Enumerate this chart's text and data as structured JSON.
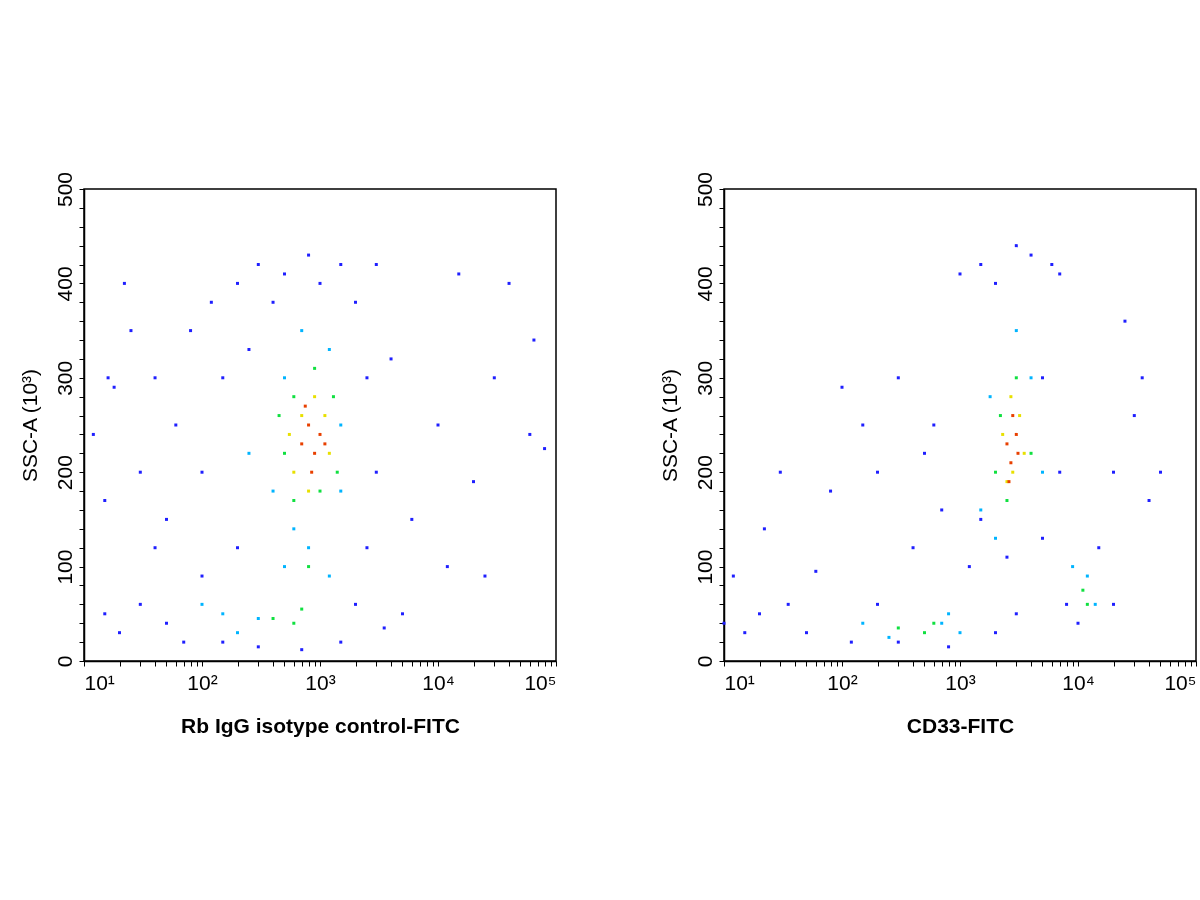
{
  "chart_data": [
    {
      "type": "scatter",
      "xlabel": "Rb IgG isotype control-FITC",
      "ylabel": "SSC-A  (10³)",
      "log": "x",
      "marker": "square",
      "grid": false,
      "xlim": [
        10,
        100000
      ],
      "ylim": [
        0,
        500
      ],
      "xticks": [
        {
          "value": 10,
          "label": "10¹"
        },
        {
          "value": 20,
          "label": null
        },
        {
          "value": 30,
          "label": null
        },
        {
          "value": 40,
          "label": null
        },
        {
          "value": 50,
          "label": null
        },
        {
          "value": 60,
          "label": null
        },
        {
          "value": 70,
          "label": null
        },
        {
          "value": 80,
          "label": null
        },
        {
          "value": 90,
          "label": null
        },
        {
          "value": 100,
          "label": "10²"
        },
        {
          "value": 200,
          "label": null
        },
        {
          "value": 300,
          "label": null
        },
        {
          "value": 400,
          "label": null
        },
        {
          "value": 500,
          "label": null
        },
        {
          "value": 600,
          "label": null
        },
        {
          "value": 700,
          "label": null
        },
        {
          "value": 800,
          "label": null
        },
        {
          "value": 900,
          "label": null
        },
        {
          "value": 1000,
          "label": "10³"
        },
        {
          "value": 2000,
          "label": null
        },
        {
          "value": 3000,
          "label": null
        },
        {
          "value": 4000,
          "label": null
        },
        {
          "value": 5000,
          "label": null
        },
        {
          "value": 6000,
          "label": null
        },
        {
          "value": 7000,
          "label": null
        },
        {
          "value": 8000,
          "label": null
        },
        {
          "value": 9000,
          "label": null
        },
        {
          "value": 10000,
          "label": "10⁴"
        },
        {
          "value": 20000,
          "label": null
        },
        {
          "value": 30000,
          "label": null
        },
        {
          "value": 40000,
          "label": null
        },
        {
          "value": 50000,
          "label": null
        },
        {
          "value": 60000,
          "label": null
        },
        {
          "value": 70000,
          "label": null
        },
        {
          "value": 80000,
          "label": null
        },
        {
          "value": 90000,
          "label": null
        },
        {
          "value": 100000,
          "label": "10⁵"
        }
      ],
      "yticks": [
        0,
        {
          "value": 20,
          "label": null
        },
        {
          "value": 40,
          "label": null
        },
        {
          "value": 60,
          "label": null
        },
        {
          "value": 80,
          "label": null
        },
        100,
        {
          "value": 120,
          "label": null
        },
        {
          "value": 140,
          "label": null
        },
        {
          "value": 160,
          "label": null
        },
        {
          "value": 180,
          "label": null
        },
        200,
        {
          "value": 220,
          "label": null
        },
        {
          "value": 240,
          "label": null
        },
        {
          "value": 260,
          "label": null
        },
        {
          "value": 280,
          "label": null
        },
        300,
        {
          "value": 320,
          "label": null
        },
        {
          "value": 340,
          "label": null
        },
        {
          "value": 360,
          "label": null
        },
        {
          "value": 380,
          "label": null
        },
        400,
        {
          "value": 420,
          "label": null
        },
        {
          "value": 440,
          "label": null
        },
        {
          "value": 460,
          "label": null
        },
        {
          "value": 480,
          "label": null
        },
        500
      ],
      "series": [
        {
          "color": "#1f1fff",
          "x": [
            12,
            15,
            18,
            22,
            25,
            30,
            40,
            50,
            60,
            80,
            100,
            120,
            150,
            200,
            250,
            300,
            400,
            500,
            800,
            1000,
            1500,
            2000,
            3000,
            2500,
            3000,
            4000,
            6000,
            10000,
            15000,
            20000,
            30000,
            40000,
            60000,
            65000,
            80000,
            12000,
            25000,
            5000,
            15,
            20,
            30,
            50,
            70,
            150,
            300,
            700,
            1500,
            2000,
            2500,
            200,
            100,
            40,
            3500,
            16
          ],
          "values": [
            240,
            170,
            290,
            400,
            350,
            200,
            300,
            150,
            250,
            350,
            200,
            380,
            300,
            400,
            330,
            420,
            380,
            410,
            430,
            400,
            420,
            380,
            420,
            300,
            200,
            320,
            150,
            250,
            410,
            190,
            300,
            400,
            240,
            340,
            225,
            100,
            90,
            50,
            50,
            30,
            60,
            40,
            20,
            20,
            15,
            12,
            20,
            60,
            120,
            120,
            90,
            120,
            35,
            300
          ]
        },
        {
          "color": "#00b4ff",
          "x": [
            150,
            200,
            300,
            500,
            600,
            800,
            1200,
            400,
            500,
            1200,
            1500,
            700,
            250,
            1500,
            100
          ],
          "values": [
            50,
            30,
            45,
            100,
            140,
            120,
            90,
            180,
            300,
            330,
            250,
            350,
            220,
            180,
            60
          ]
        },
        {
          "color": "#10e040",
          "x": [
            400,
            600,
            700,
            500,
            600,
            900,
            1300,
            1400,
            600,
            1000,
            450,
            800
          ],
          "values": [
            45,
            40,
            55,
            220,
            280,
            310,
            280,
            200,
            170,
            180,
            260,
            100
          ]
        },
        {
          "color": "#e8e000",
          "x": [
            600,
            700,
            900,
            1100,
            1200,
            800,
            550
          ],
          "values": [
            200,
            260,
            280,
            260,
            220,
            180,
            240
          ]
        },
        {
          "color": "#e84000",
          "x": [
            700,
            800,
            900,
            1000,
            850,
            750,
            1100
          ],
          "values": [
            230,
            250,
            220,
            240,
            200,
            270,
            230
          ]
        }
      ]
    },
    {
      "type": "scatter",
      "xlabel": "CD33-FITC",
      "ylabel": "SSC-A  (10³)",
      "log": "x",
      "marker": "square",
      "grid": false,
      "xlim": [
        10,
        100000
      ],
      "ylim": [
        0,
        500
      ],
      "xticks": [
        {
          "value": 10,
          "label": "10¹"
        },
        {
          "value": 20,
          "label": null
        },
        {
          "value": 30,
          "label": null
        },
        {
          "value": 40,
          "label": null
        },
        {
          "value": 50,
          "label": null
        },
        {
          "value": 60,
          "label": null
        },
        {
          "value": 70,
          "label": null
        },
        {
          "value": 80,
          "label": null
        },
        {
          "value": 90,
          "label": null
        },
        {
          "value": 100,
          "label": "10²"
        },
        {
          "value": 200,
          "label": null
        },
        {
          "value": 300,
          "label": null
        },
        {
          "value": 400,
          "label": null
        },
        {
          "value": 500,
          "label": null
        },
        {
          "value": 600,
          "label": null
        },
        {
          "value": 700,
          "label": null
        },
        {
          "value": 800,
          "label": null
        },
        {
          "value": 900,
          "label": null
        },
        {
          "value": 1000,
          "label": "10³"
        },
        {
          "value": 2000,
          "label": null
        },
        {
          "value": 3000,
          "label": null
        },
        {
          "value": 4000,
          "label": null
        },
        {
          "value": 5000,
          "label": null
        },
        {
          "value": 6000,
          "label": null
        },
        {
          "value": 7000,
          "label": null
        },
        {
          "value": 8000,
          "label": null
        },
        {
          "value": 9000,
          "label": null
        },
        {
          "value": 10000,
          "label": "10⁴"
        },
        {
          "value": 20000,
          "label": null
        },
        {
          "value": 30000,
          "label": null
        },
        {
          "value": 40000,
          "label": null
        },
        {
          "value": 50000,
          "label": null
        },
        {
          "value": 60000,
          "label": null
        },
        {
          "value": 70000,
          "label": null
        },
        {
          "value": 80000,
          "label": null
        },
        {
          "value": 90000,
          "label": null
        },
        {
          "value": 100000,
          "label": "10⁵"
        }
      ],
      "yticks": [
        0,
        {
          "value": 20,
          "label": null
        },
        {
          "value": 40,
          "label": null
        },
        {
          "value": 60,
          "label": null
        },
        {
          "value": 80,
          "label": null
        },
        100,
        {
          "value": 120,
          "label": null
        },
        {
          "value": 140,
          "label": null
        },
        {
          "value": 160,
          "label": null
        },
        {
          "value": 180,
          "label": null
        },
        200,
        {
          "value": 220,
          "label": null
        },
        {
          "value": 240,
          "label": null
        },
        {
          "value": 260,
          "label": null
        },
        {
          "value": 280,
          "label": null
        },
        300,
        {
          "value": 320,
          "label": null
        },
        {
          "value": 340,
          "label": null
        },
        {
          "value": 360,
          "label": null
        },
        {
          "value": 380,
          "label": null
        },
        400,
        {
          "value": 420,
          "label": null
        },
        {
          "value": 440,
          "label": null
        },
        {
          "value": 460,
          "label": null
        },
        {
          "value": 480,
          "label": null
        },
        500
      ],
      "series": [
        {
          "color": "#1f1fff",
          "x": [
            10,
            12,
            15,
            20,
            22,
            30,
            35,
            50,
            60,
            80,
            100,
            120,
            150,
            200,
            200,
            300,
            300,
            400,
            500,
            600,
            800,
            1000,
            700,
            1200,
            1500,
            1500,
            2000,
            3000,
            4000,
            6000,
            7000,
            5000,
            5000,
            2500,
            8000,
            10000,
            15000,
            20000,
            25000,
            30000,
            40000,
            50000,
            35000,
            3000,
            2000,
            7000,
            20000
          ],
          "values": [
            40,
            90,
            30,
            50,
            140,
            200,
            60,
            30,
            95,
            180,
            290,
            20,
            250,
            60,
            200,
            300,
            20,
            120,
            220,
            250,
            15,
            410,
            160,
            100,
            150,
            420,
            400,
            440,
            430,
            420,
            410,
            300,
            130,
            110,
            60,
            40,
            120,
            200,
            360,
            260,
            170,
            200,
            300,
            50,
            30,
            200,
            60
          ]
        },
        {
          "color": "#00b4ff",
          "x": [
            150,
            250,
            800,
            1000,
            1500,
            2000,
            3000,
            4000,
            5000,
            1800,
            9000,
            14000,
            12000,
            700
          ],
          "values": [
            40,
            25,
            50,
            30,
            160,
            130,
            350,
            300,
            200,
            280,
            100,
            60,
            90,
            40
          ]
        },
        {
          "color": "#10e040",
          "x": [
            300,
            500,
            600,
            2000,
            2500,
            3000,
            4000,
            11000,
            12000,
            2200
          ],
          "values": [
            35,
            30,
            40,
            200,
            170,
            300,
            220,
            75,
            60,
            260
          ]
        },
        {
          "color": "#e8e000",
          "x": [
            2300,
            2800,
            3200,
            2500,
            3500,
            2700
          ],
          "values": [
            240,
            200,
            260,
            190,
            220,
            280
          ]
        },
        {
          "color": "#e84000",
          "x": [
            2500,
            2700,
            3000,
            2800,
            2600,
            3100
          ],
          "values": [
            230,
            210,
            240,
            260,
            190,
            220
          ]
        }
      ]
    }
  ]
}
